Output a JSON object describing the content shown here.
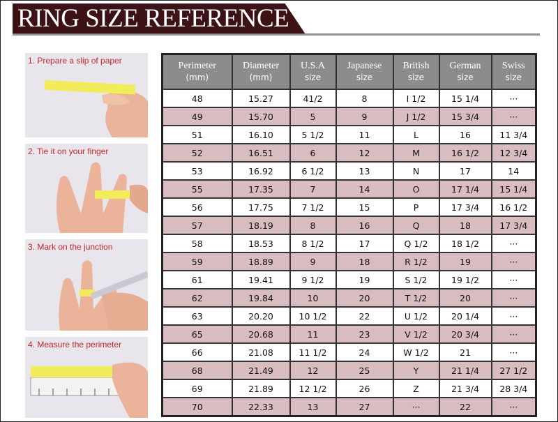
{
  "title": "RING SIZE REFERENCE",
  "steps": [
    {
      "label": "1. Prepare a slip of paper"
    },
    {
      "label": "2. Tie it on your finger"
    },
    {
      "label": "3. Mark on the junction"
    },
    {
      "label": "4. Measure the perimeter"
    }
  ],
  "table": {
    "headers": [
      {
        "name": "Perimeter",
        "unit": "(mm)"
      },
      {
        "name": "Diameter",
        "unit": "(mm)"
      },
      {
        "name": "U.S.A",
        "unit": "size"
      },
      {
        "name": "Japanese",
        "unit": "size"
      },
      {
        "name": "British",
        "unit": "size"
      },
      {
        "name": "German",
        "unit": "size"
      },
      {
        "name": "Swiss",
        "unit": "size"
      }
    ],
    "rows": [
      [
        "48",
        "15.27",
        "41/2",
        "8",
        "I 1/2",
        "15 1/4",
        "···"
      ],
      [
        "49",
        "15.70",
        "5",
        "9",
        "J 1/2",
        "15 3/4",
        "···"
      ],
      [
        "51",
        "16.10",
        "5 1/2",
        "11",
        "L",
        "16",
        "11 3/4"
      ],
      [
        "52",
        "16.51",
        "6",
        "12",
        "M",
        "16 1/2",
        "12 3/4"
      ],
      [
        "53",
        "16.92",
        "6 1/2",
        "13",
        "N",
        "17",
        "14"
      ],
      [
        "55",
        "17.35",
        "7",
        "14",
        "O",
        "17 1/4",
        "15 1/4"
      ],
      [
        "56",
        "17.75",
        "7 1/2",
        "15",
        "P",
        "17 3/4",
        "16 1/2"
      ],
      [
        "57",
        "18.19",
        "8",
        "16",
        "Q",
        "18",
        "17 3/4"
      ],
      [
        "58",
        "18.53",
        "8 1/2",
        "17",
        "Q  1/2",
        "18 1/2",
        "···"
      ],
      [
        "59",
        "18.89",
        "9",
        "18",
        "R 1/2",
        "19",
        "···"
      ],
      [
        "61",
        "19.41",
        "9 1/2",
        "19",
        "S 1/2",
        "19 1/2",
        "···"
      ],
      [
        "62",
        "19.84",
        "10",
        "20",
        "T 1/2",
        "20",
        "···"
      ],
      [
        "63",
        "20.20",
        "10 1/2",
        "22",
        "U 1/2",
        "20 1/4",
        "···"
      ],
      [
        "65",
        "20.68",
        "11",
        "23",
        "V 1/2",
        "20 3/4",
        "···"
      ],
      [
        "66",
        "21.08",
        "11 1/2",
        "24",
        "W 1/2",
        "21",
        "···"
      ],
      [
        "68",
        "21.49",
        "12",
        "25",
        "Y",
        "21 1/4",
        "27 1/2"
      ],
      [
        "69",
        "21.89",
        "12 1/2",
        "26",
        "Z",
        "21 3/4",
        "28 3/4"
      ],
      [
        "70",
        "22.33",
        "13",
        "27",
        "···",
        "22",
        "···"
      ]
    ]
  },
  "colors": {
    "banner": "#3c1216",
    "header": "#8c8c8c",
    "alt_row": "#d8bcc0",
    "step_text": "#c0282a"
  }
}
